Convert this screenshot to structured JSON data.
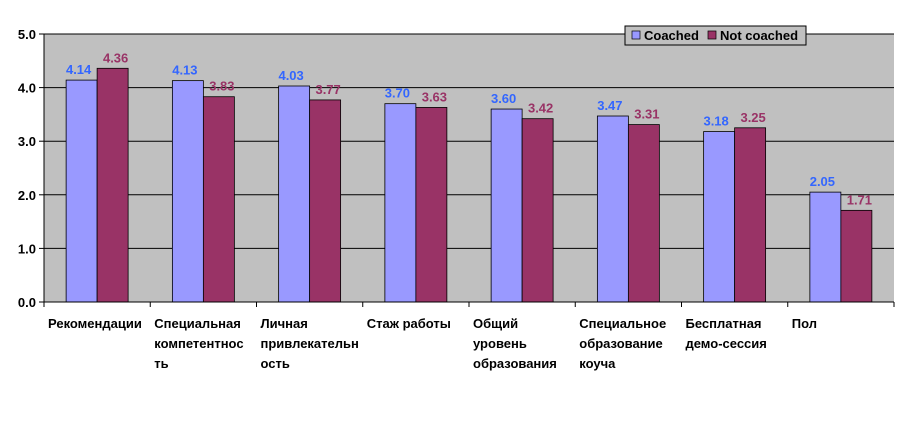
{
  "chart_data": {
    "type": "bar",
    "categories": [
      [
        "Рекомендации"
      ],
      [
        "Специальная",
        "компетентнос",
        "ть"
      ],
      [
        "Личная",
        "привлекательн",
        "ость"
      ],
      [
        "Стаж работы"
      ],
      [
        "Общий",
        "уровень",
        "образования"
      ],
      [
        "Специальное",
        "образование",
        "коуча"
      ],
      [
        "Бесплатная",
        "демо-сессия"
      ],
      [
        "Пол"
      ]
    ],
    "series": [
      {
        "name": "Coached",
        "color": "#9999ff",
        "label_color": "#3366ff",
        "values": [
          4.14,
          4.13,
          4.03,
          3.7,
          3.6,
          3.47,
          3.18,
          2.05
        ],
        "labels": [
          "4.14",
          "4.13",
          "4.03",
          "3.70",
          "3.60",
          "3.47",
          "3.18",
          "2.05"
        ]
      },
      {
        "name": "Not coached",
        "color": "#993366",
        "label_color": "#993366",
        "values": [
          4.36,
          3.83,
          3.77,
          3.63,
          3.42,
          3.31,
          3.25,
          1.71
        ],
        "labels": [
          "4.36",
          "3.83",
          "3.77",
          "3.63",
          "3.42",
          "3.31",
          "3.25",
          "1.71"
        ]
      }
    ],
    "yticks": [
      "0.0",
      "1.0",
      "2.0",
      "3.0",
      "4.0",
      "5.0"
    ],
    "ylim": [
      0,
      5
    ],
    "grid": true,
    "legend_position": "top-right",
    "plot_background": "#c0c0c0"
  }
}
